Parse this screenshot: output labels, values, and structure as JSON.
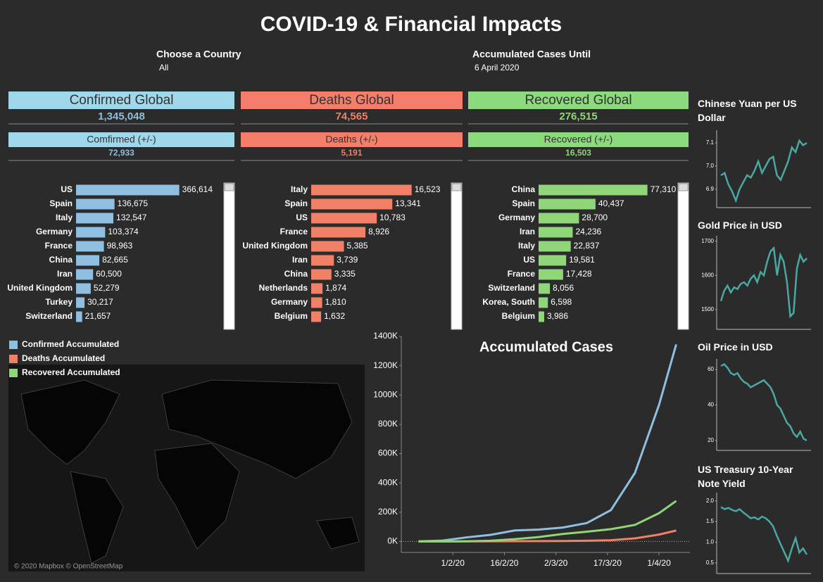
{
  "title": "COVID-19 & Financial Impacts",
  "filters": [
    {
      "label": "Choose a Country",
      "value": "All"
    },
    {
      "label": "Accumulated Cases Until",
      "value": "6 April 2020"
    }
  ],
  "kpis": [
    {
      "title": "Confirmed Global",
      "value": "1,345,048",
      "delta_title": "Comfirmed (+/-)",
      "delta": "72,933",
      "color": "#9fd8ea",
      "text_color": "#8fbfe0"
    },
    {
      "title": "Deaths Global",
      "value": "74,565",
      "delta_title": "Deaths (+/-)",
      "delta": "5,191",
      "color": "#f47e6a",
      "text_color": "#f08066"
    },
    {
      "title": "Recovered Global",
      "value": "276,515",
      "delta_title": "Recovered (+/-)",
      "delta": "16,503",
      "color": "#8cd97e",
      "text_color": "#8fd679"
    }
  ],
  "map": {
    "attribution": "© 2020 Mapbox © OpenStreetMap"
  },
  "chart_data": [
    {
      "type": "hbar",
      "color": "#8fbfe0",
      "xlim": [
        0,
        475000
      ],
      "categories": [
        "US",
        "Spain",
        "Italy",
        "Germany",
        "France",
        "China",
        "Iran",
        "United Kingdom",
        "Turkey",
        "Switzerland"
      ],
      "values": [
        366614,
        136675,
        132547,
        103374,
        98963,
        82665,
        60500,
        52279,
        30217,
        21657
      ],
      "value_labels": [
        "366,614",
        "136,675",
        "132,547",
        "103,374",
        "98,963",
        "82,665",
        "60,500",
        "52,279",
        "30,217",
        "21,657"
      ]
    },
    {
      "type": "hbar",
      "color": "#f08066",
      "xlim": [
        0,
        22000
      ],
      "categories": [
        "Italy",
        "Spain",
        "US",
        "France",
        "United Kingdom",
        "Iran",
        "China",
        "Netherlands",
        "Germany",
        "Belgium"
      ],
      "values": [
        16523,
        13341,
        10783,
        8926,
        5385,
        3739,
        3335,
        1874,
        1810,
        1632
      ],
      "value_labels": [
        "16,523",
        "13,341",
        "10,783",
        "8,926",
        "5,385",
        "3,739",
        "3,335",
        "1,874",
        "1,810",
        "1,632"
      ]
    },
    {
      "type": "hbar",
      "color": "#8fd679",
      "xlim": [
        0,
        95000
      ],
      "categories": [
        "China",
        "Spain",
        "Germany",
        "Iran",
        "Italy",
        "US",
        "France",
        "Switzerland",
        "Korea, South",
        "Belgium"
      ],
      "values": [
        77310,
        40437,
        28700,
        24236,
        22837,
        19581,
        17428,
        8056,
        6598,
        3986
      ],
      "value_labels": [
        "77,310",
        "40,437",
        "28,700",
        "24,236",
        "22,837",
        "19,581",
        "17,428",
        "8,056",
        "6,598",
        "3,986"
      ]
    },
    {
      "type": "line",
      "title": "Accumulated Cases",
      "legend": "left",
      "x": [
        "22/1/20",
        "29/1/20",
        "5/2/20",
        "12/2/20",
        "19/2/20",
        "26/2/20",
        "4/3/20",
        "11/3/20",
        "18/3/20",
        "25/3/20",
        "1/4/20",
        "6/4/20"
      ],
      "series": [
        {
          "name": "Confirmed Accumulated",
          "color": "#8fbfe0",
          "values": [
            555,
            6000,
            28000,
            45000,
            75000,
            81000,
            95000,
            126000,
            214000,
            468000,
            932000,
            1345048
          ]
        },
        {
          "name": "Deaths Accumulated",
          "color": "#f08066",
          "values": [
            17,
            133,
            565,
            1118,
            2122,
            2770,
            3300,
            4600,
            8700,
            21000,
            47000,
            74565
          ]
        },
        {
          "name": "Recovered Accumulated",
          "color": "#8fd679",
          "values": [
            28,
            130,
            1100,
            5100,
            16000,
            30000,
            51000,
            67000,
            84000,
            113000,
            193000,
            276515
          ]
        }
      ],
      "xlim": [
        "17/1/20",
        "10/4/20"
      ],
      "xticks": [
        "1/2/20",
        "16/2/20",
        "2/3/20",
        "17/3/20",
        "1/4/20"
      ],
      "ylim": [
        -75000,
        1400000
      ],
      "yticks": [
        {
          "value": 0,
          "label": "0K"
        },
        {
          "value": 200000,
          "label": "200K"
        },
        {
          "value": 400000,
          "label": "400K"
        },
        {
          "value": 600000,
          "label": "600K"
        },
        {
          "value": 800000,
          "label": "800K"
        },
        {
          "value": 1000000,
          "label": "1000K"
        },
        {
          "value": 1200000,
          "label": "1200K"
        },
        {
          "value": 1400000,
          "label": "1400K"
        }
      ]
    },
    {
      "type": "spark",
      "title": "Chinese Yuan per US Dollar",
      "color": "#4aa8a3",
      "ylim": [
        6.82,
        7.155
      ],
      "yticks": [
        6.9,
        {
          "value": 7,
          "label": "7.0"
        },
        7.1
      ],
      "values": [
        6.96,
        6.97,
        6.92,
        6.89,
        6.85,
        6.9,
        6.93,
        6.96,
        6.95,
        6.98,
        7.02,
        6.97,
        7.0,
        7.03,
        7.04,
        6.96,
        6.94,
        6.98,
        7.02,
        7.08,
        7.06,
        7.11,
        7.09,
        7.1
      ]
    },
    {
      "type": "spark",
      "title": "Gold Price in USD",
      "color": "#4aa8a3",
      "ylim": [
        1442,
        1716
      ],
      "yticks": [
        1500,
        1600,
        1700
      ],
      "values": [
        1525,
        1555,
        1570,
        1550,
        1565,
        1560,
        1575,
        1580,
        1570,
        1590,
        1600,
        1580,
        1610,
        1600,
        1640,
        1670,
        1680,
        1600,
        1660,
        1640,
        1580,
        1480,
        1490,
        1620,
        1660,
        1640,
        1650
      ]
    },
    {
      "type": "spark",
      "title": "Oil Price in USD",
      "color": "#4aa8a3",
      "ylim": [
        14.4,
        66
      ],
      "yticks": [
        20,
        40,
        60
      ],
      "values": [
        62,
        63,
        61,
        58,
        57,
        58,
        55,
        53,
        52,
        50,
        51,
        52,
        53,
        54,
        52,
        50,
        46,
        40,
        38,
        34,
        30,
        28,
        24,
        22,
        25,
        21,
        20
      ]
    },
    {
      "type": "spark",
      "title": "US Treasury 10-Year Note Yield",
      "color": "#4aa8a3",
      "ylim": [
        0.24,
        2.2
      ],
      "yticks": [
        0.5,
        {
          "value": 1,
          "label": "1.0"
        },
        1.5,
        {
          "value": 2,
          "label": "2.0"
        }
      ],
      "values": [
        1.85,
        1.8,
        1.83,
        1.78,
        1.75,
        1.8,
        1.72,
        1.65,
        1.58,
        1.6,
        1.55,
        1.62,
        1.58,
        1.5,
        1.38,
        1.15,
        0.95,
        0.75,
        0.55,
        0.85,
        1.1,
        0.75,
        0.85,
        0.7
      ]
    }
  ]
}
